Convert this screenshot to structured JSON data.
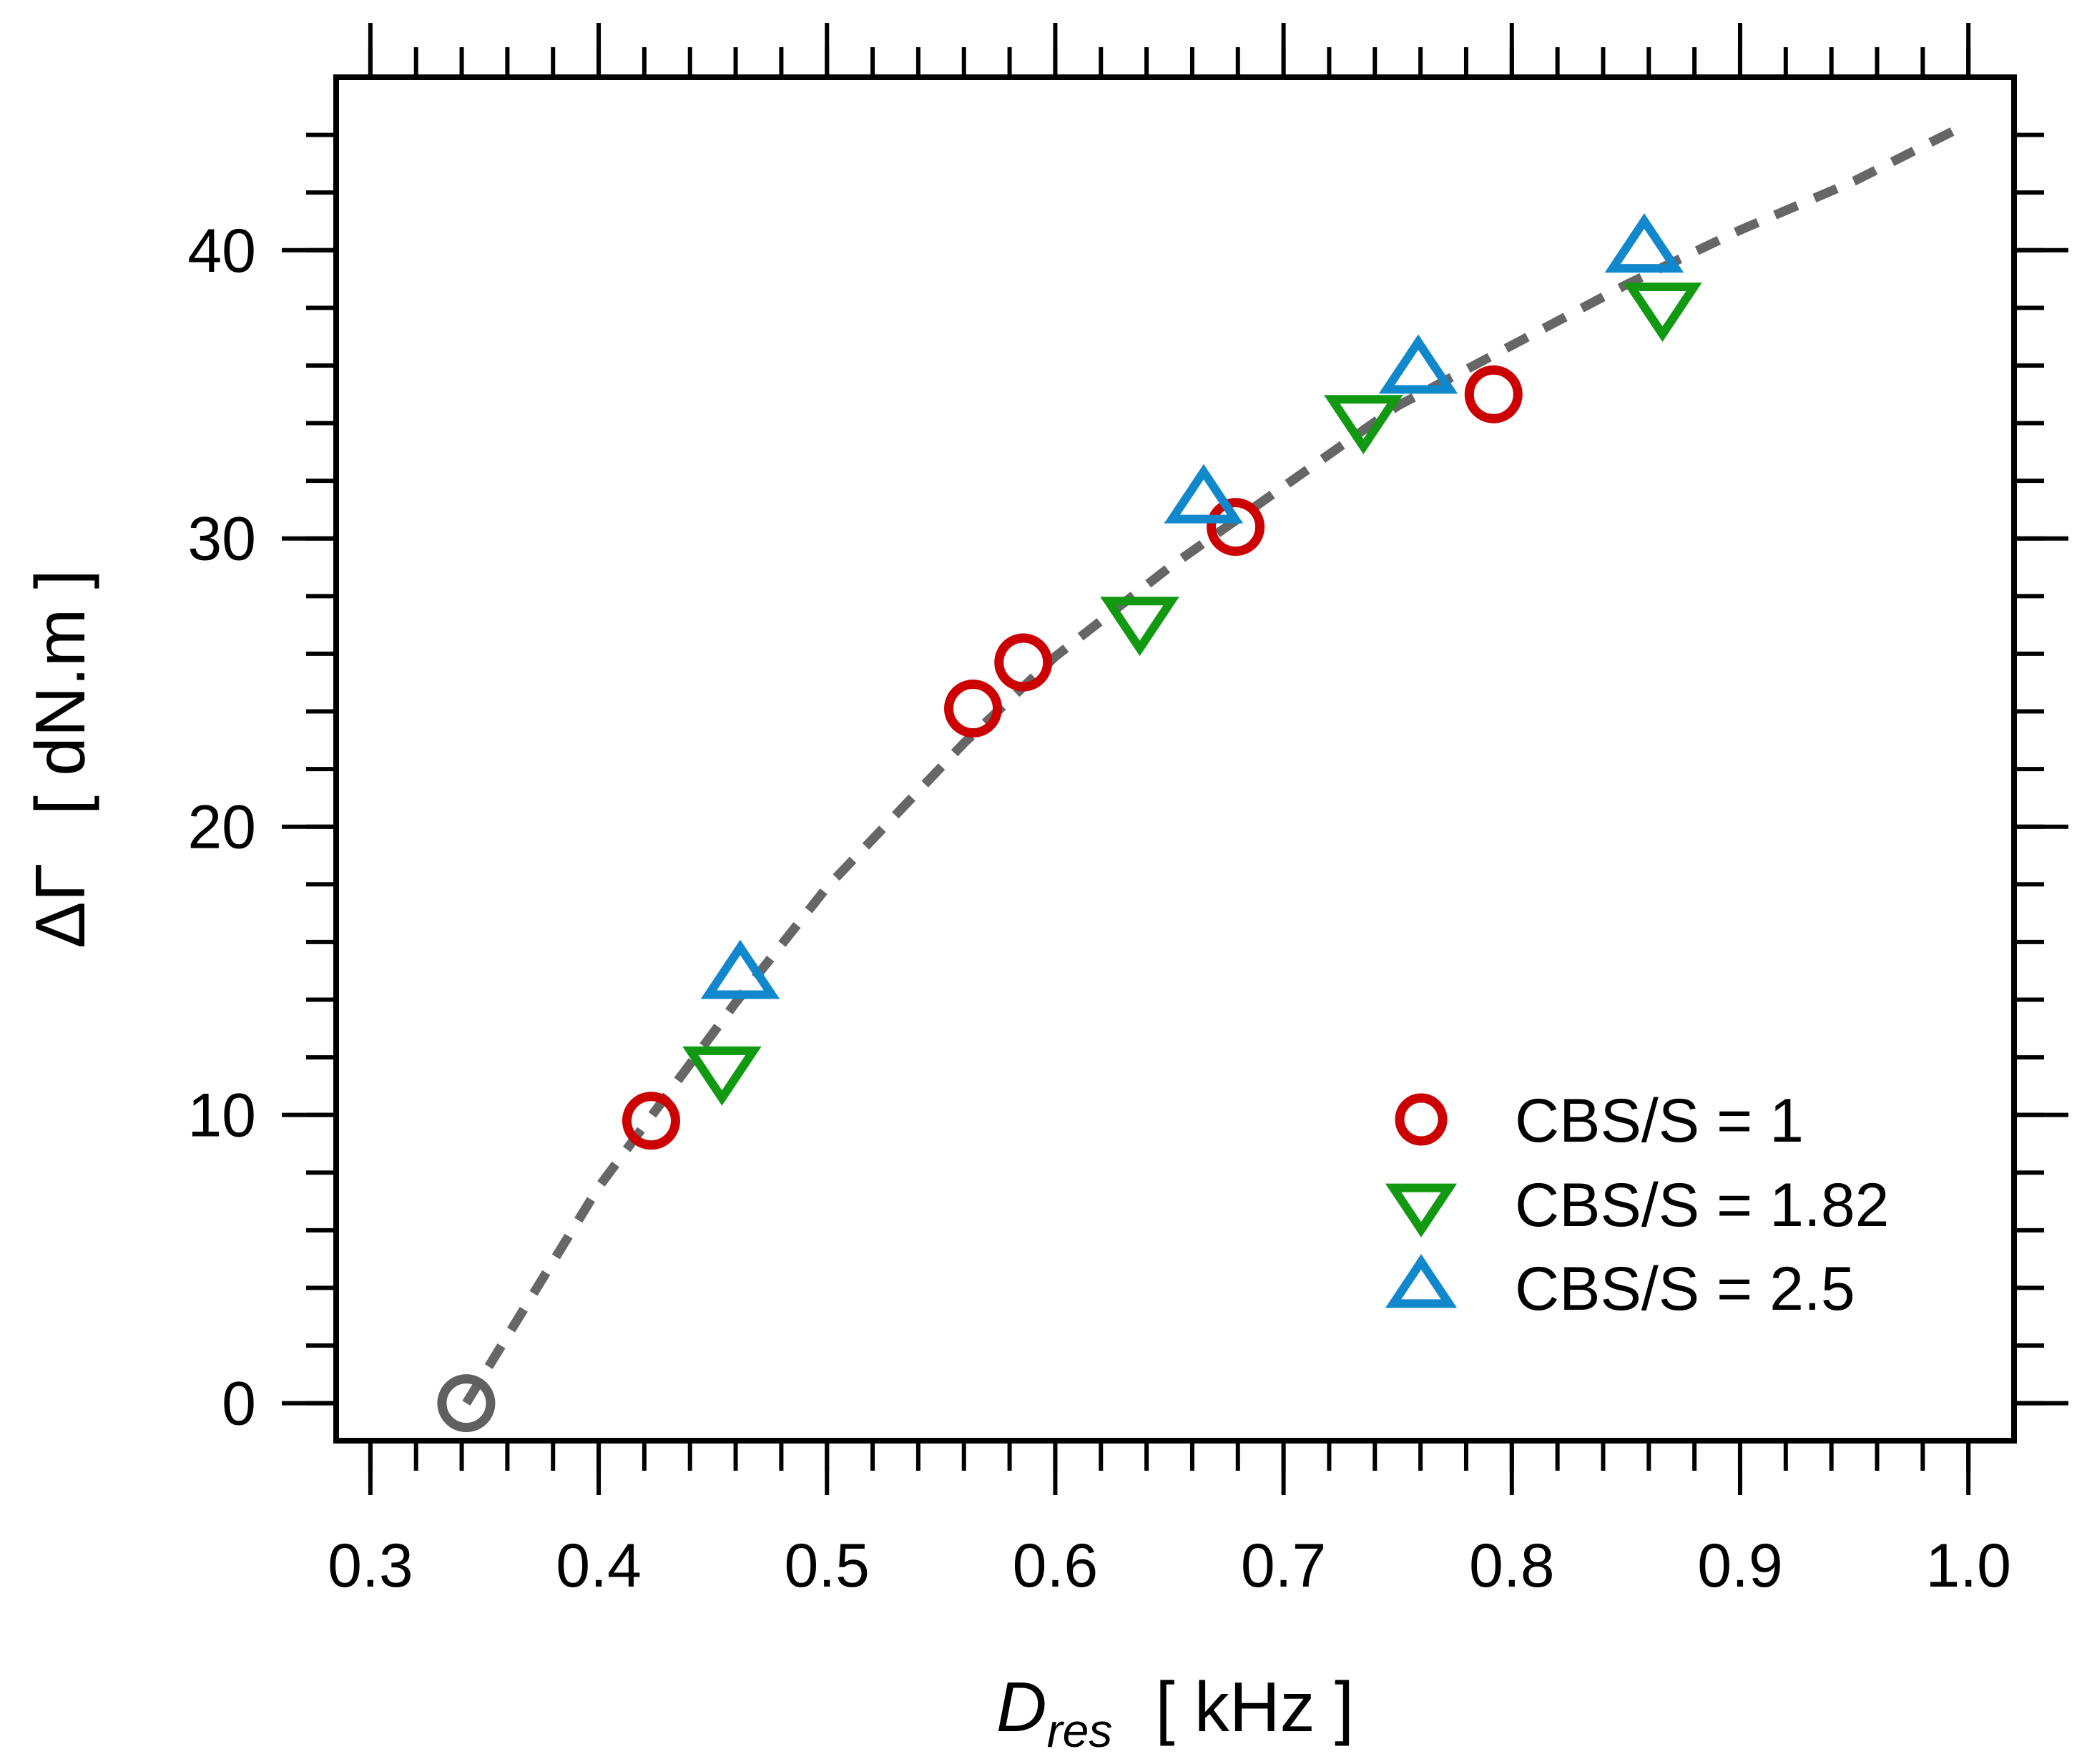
{
  "chart_data": {
    "type": "scatter",
    "title": "",
    "xlabel": {
      "symbol": "D",
      "subscript": "res",
      "unit": "[ kHz ]"
    },
    "ylabel": {
      "text": "ΔΓ",
      "unit": "[ dN.m ]"
    },
    "xlim": [
      0.285,
      1.02
    ],
    "ylim": [
      -1.3,
      46.0
    ],
    "x_ticks": [
      0.3,
      0.4,
      0.5,
      0.6,
      0.7,
      0.8,
      0.9,
      1.0
    ],
    "x_tick_labels": [
      "0.3",
      "0.4",
      "0.5",
      "0.6",
      "0.7",
      "0.8",
      "0.9",
      "1.0"
    ],
    "x_minor_step": 0.02,
    "y_ticks": [
      0,
      10,
      20,
      30,
      40
    ],
    "y_tick_labels": [
      "0",
      "10",
      "20",
      "30",
      "40"
    ],
    "y_minor_step": 2,
    "grid": false,
    "legend_position": "bottom-right",
    "origin_point": {
      "x": 0.342,
      "y": 0.0,
      "color": "#606060"
    },
    "fit_curve": {
      "style": "dashed",
      "color": "#666666",
      "points": [
        [
          0.342,
          0.0
        ],
        [
          0.4,
          7.5
        ],
        [
          0.46,
          13.9
        ],
        [
          0.5,
          17.9
        ],
        [
          0.56,
          22.9
        ],
        [
          0.6,
          25.9
        ],
        [
          0.65,
          29.0
        ],
        [
          0.7,
          31.8
        ],
        [
          0.75,
          34.6
        ],
        [
          0.8,
          36.7
        ],
        [
          0.85,
          38.8
        ],
        [
          0.9,
          40.7
        ],
        [
          0.95,
          42.4
        ],
        [
          0.995,
          44.2
        ]
      ]
    },
    "series": [
      {
        "name": "CBS/S = 1",
        "marker": "circle",
        "color": "#cc0000",
        "points": [
          [
            0.423,
            9.8
          ],
          [
            0.564,
            24.1
          ],
          [
            0.586,
            25.7
          ],
          [
            0.679,
            30.4
          ],
          [
            0.792,
            35.0
          ]
        ]
      },
      {
        "name": "CBS/S = 1.82",
        "marker": "triangle-down",
        "color": "#119911",
        "points": [
          [
            0.454,
            11.6
          ],
          [
            0.637,
            27.2
          ],
          [
            0.735,
            34.2
          ],
          [
            0.866,
            38.1
          ]
        ]
      },
      {
        "name": "CBS/S = 2.5",
        "marker": "triangle-up",
        "color": "#1188cc",
        "points": [
          [
            0.462,
            14.8
          ],
          [
            0.665,
            31.3
          ],
          [
            0.759,
            35.8
          ],
          [
            0.858,
            40.0
          ]
        ]
      }
    ]
  }
}
